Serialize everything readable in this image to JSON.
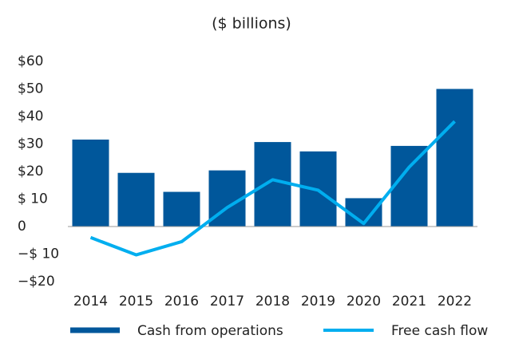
{
  "chart_data": {
    "type": "bar",
    "subtitle": "($ billions)",
    "categories": [
      "2014",
      "2015",
      "2016",
      "2017",
      "2018",
      "2019",
      "2020",
      "2021",
      "2022"
    ],
    "series": [
      {
        "name": "Cash from operations",
        "type": "bar",
        "color": "#00579b",
        "values": [
          31.6,
          19.5,
          12.6,
          20.4,
          30.7,
          27.3,
          10.3,
          29.3,
          50
        ]
      },
      {
        "name": "Free cash flow",
        "type": "line",
        "color": "#00aeef",
        "values": [
          -4,
          -10.3,
          -5.5,
          6.9,
          17,
          13.2,
          1.1,
          21.6,
          38.2
        ]
      }
    ],
    "ylim": [
      -20,
      60
    ],
    "yticks": [
      {
        "value": -20,
        "label": "−$20"
      },
      {
        "value": -10,
        "label": "−$ 10"
      },
      0,
      {
        "value": 10,
        "label": "$ 10"
      },
      {
        "value": 20,
        "label": "$20"
      },
      {
        "value": 30,
        "label": "$30"
      },
      {
        "value": 40,
        "label": "$40"
      },
      {
        "value": 50,
        "label": "$50"
      },
      {
        "value": 60,
        "label": "$60"
      }
    ],
    "grid": false
  }
}
